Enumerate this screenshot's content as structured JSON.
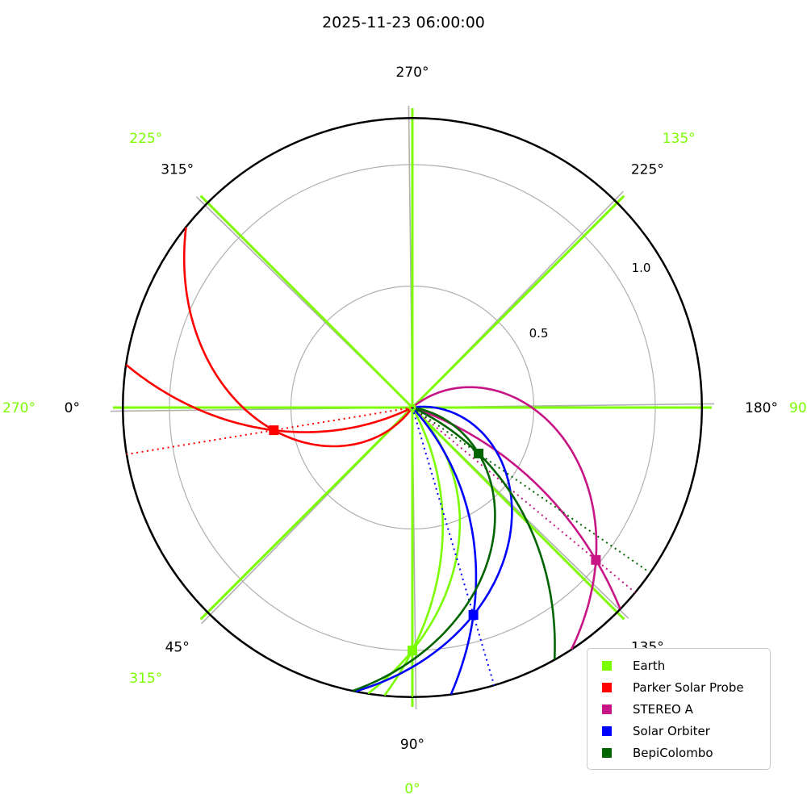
{
  "chart_data": {
    "type": "polar",
    "title": "2025-11-23 06:00:00",
    "grid": true,
    "r_max_au": 1.192,
    "r_rings_au": [
      0.5,
      1.0
    ],
    "r_tick_labels": [
      {
        "label": "0.5",
        "au": 0.5
      },
      {
        "label": "1.0",
        "au": 1.0
      }
    ],
    "angle_labels_black": [
      {
        "label": "0°",
        "angle_deg": 0
      },
      {
        "label": "45°",
        "angle_deg": 45
      },
      {
        "label": "90°",
        "angle_deg": 90
      },
      {
        "label": "135°",
        "angle_deg": 135
      },
      {
        "label": "180°",
        "angle_deg": 180
      },
      {
        "label": "225°",
        "angle_deg": 225
      },
      {
        "label": "270°",
        "angle_deg": 270
      },
      {
        "label": "315°",
        "angle_deg": 315
      }
    ],
    "angle_labels_green": [
      {
        "label": "270°",
        "angle_deg": 0
      },
      {
        "label": "315°",
        "angle_deg": 45
      },
      {
        "label": "0°",
        "angle_deg": 90
      },
      {
        "label": "90°",
        "angle_deg": 180
      },
      {
        "label": "135°",
        "angle_deg": 225
      },
      {
        "label": "225°",
        "angle_deg": 315
      }
    ],
    "bodies": [
      {
        "name": "Earth",
        "color": "#7cfc00",
        "r_au": 1.0,
        "angle_deg": 90.0,
        "spiral_k_slow": 46,
        "spiral_k_fast": 29
      },
      {
        "name": "Parker Solar Probe",
        "color": "#ff0000",
        "r_au": 0.578,
        "angle_deg": 9.3,
        "spiral_k_slow": 78,
        "spiral_k_fast": 29
      },
      {
        "name": "STEREO A",
        "color": "#c71585",
        "r_au": 0.982,
        "angle_deg": 140.3,
        "spiral_k_slow": 81,
        "spiral_k_fast": 21
      },
      {
        "name": "Solar Orbiter",
        "color": "#0000ff",
        "r_au": 0.89,
        "angle_deg": 106.4,
        "spiral_k_slow": 92,
        "spiral_k_fast": 29
      },
      {
        "name": "BepiColombo",
        "color": "#006400",
        "r_au": 0.332,
        "angle_deg": 145.2,
        "spiral_k_slow": 78,
        "spiral_k_fast": 30
      }
    ],
    "angle_convention": "degrees clockwise from left horizontal (black labels); green labels counterclockwise from bottom",
    "legend_position": "lower right",
    "colors": {
      "grid_gray": "#b0b0b0",
      "outer_circle": "#000000",
      "spoke_green": "#7cfc00",
      "text": "#000000"
    }
  },
  "legend": {
    "entries": [
      {
        "label": "Earth",
        "color": "#7cfc00"
      },
      {
        "label": "Parker Solar Probe",
        "color": "#ff0000"
      },
      {
        "label": "STEREO A",
        "color": "#c71585"
      },
      {
        "label": "Solar Orbiter",
        "color": "#0000ff"
      },
      {
        "label": "BepiColombo",
        "color": "#006400"
      }
    ]
  }
}
